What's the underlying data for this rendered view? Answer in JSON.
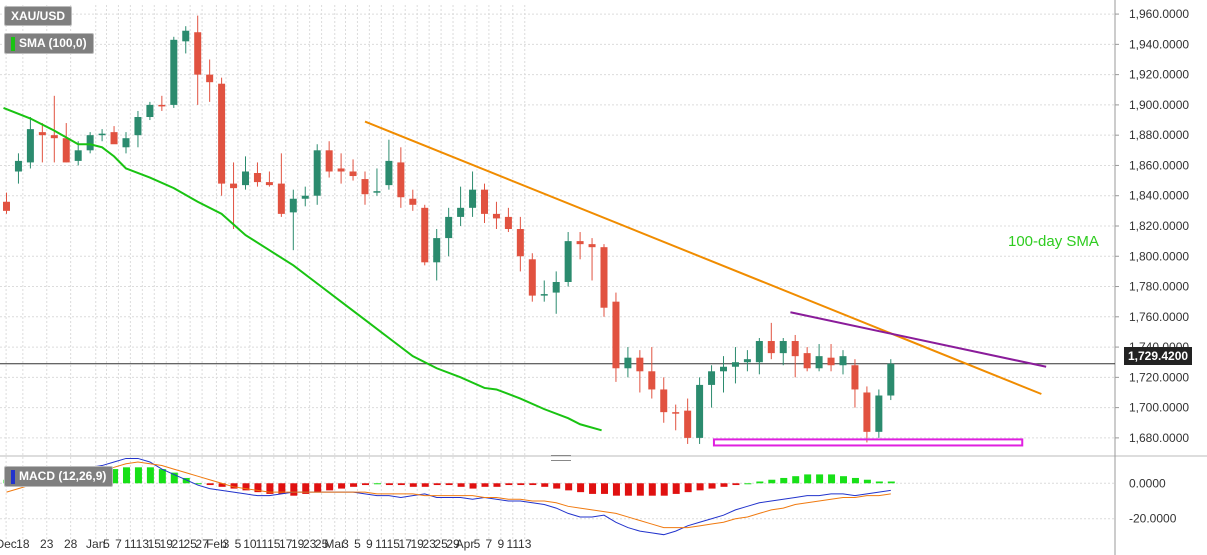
{
  "chart_data": [
    {
      "type": "candlestick",
      "symbol": "XAU/USD",
      "indicator_legend": "SMA (100,0)",
      "annotation": "100-day SMA",
      "last_price_label": "1,729.4200",
      "ylim": [
        1672,
        1966
      ],
      "y_ticks": [
        "1,960.0000",
        "1,940.0000",
        "1,920.0000",
        "1,900.0000",
        "1,880.0000",
        "1,860.0000",
        "1,840.0000",
        "1,820.0000",
        "1,800.0000",
        "1,780.0000",
        "1,760.0000",
        "1,740.0000",
        "1,720.0000",
        "1,700.0000",
        "1,680.0000"
      ],
      "y_tick_values": [
        1960,
        1940,
        1920,
        1900,
        1880,
        1860,
        1840,
        1820,
        1800,
        1780,
        1760,
        1740,
        1720,
        1700,
        1680
      ],
      "x_labels": [
        "Dec",
        "18",
        "23",
        "28",
        "Jan",
        "5",
        "7",
        "11",
        "13",
        "15",
        "19",
        "21",
        "25",
        "27",
        "Feb",
        "3",
        "5",
        "10",
        "11",
        "15",
        "17",
        "19",
        "23",
        "25",
        "Mar",
        "3",
        "5",
        "9",
        "11",
        "15",
        "17",
        "19",
        "23",
        "25",
        "29",
        "Apr",
        "5",
        "7",
        "9",
        "11",
        "13"
      ],
      "x_label_index": [
        -0.2,
        1.2,
        3.2,
        5.2,
        7.3,
        8.2,
        9.2,
        10.2,
        11.2,
        12.2,
        13.2,
        14.2,
        15.2,
        16.2,
        17.4,
        18.2,
        19.2,
        20.2,
        21.2,
        22.2,
        23.2,
        24.2,
        25.2,
        26.2,
        27.3,
        28.2,
        29.2,
        30.2,
        31.2,
        32.2,
        33.2,
        34.2,
        35.2,
        36.2,
        37.2,
        38.2,
        39.2,
        40.2,
        41.2,
        42.2,
        43.2
      ],
      "candles": [
        {
          "o": 1836,
          "h": 1842,
          "l": 1828,
          "c": 1830
        },
        {
          "o": 1856,
          "h": 1868,
          "l": 1848,
          "c": 1863
        },
        {
          "o": 1862,
          "h": 1892,
          "l": 1858,
          "c": 1884
        },
        {
          "o": 1882,
          "h": 1888,
          "l": 1862,
          "c": 1880
        },
        {
          "o": 1880,
          "h": 1906,
          "l": 1862,
          "c": 1878
        },
        {
          "o": 1878,
          "h": 1888,
          "l": 1862,
          "c": 1862
        },
        {
          "o": 1863,
          "h": 1876,
          "l": 1860,
          "c": 1870
        },
        {
          "o": 1870,
          "h": 1882,
          "l": 1868,
          "c": 1880
        },
        {
          "o": 1880,
          "h": 1884,
          "l": 1876,
          "c": 1881
        },
        {
          "o": 1882,
          "h": 1886,
          "l": 1876,
          "c": 1874
        },
        {
          "o": 1872,
          "h": 1882,
          "l": 1868,
          "c": 1878
        },
        {
          "o": 1880,
          "h": 1896,
          "l": 1872,
          "c": 1892
        },
        {
          "o": 1892,
          "h": 1902,
          "l": 1890,
          "c": 1900
        },
        {
          "o": 1900,
          "h": 1906,
          "l": 1896,
          "c": 1899
        },
        {
          "o": 1900,
          "h": 1945,
          "l": 1898,
          "c": 1943
        },
        {
          "o": 1942,
          "h": 1952,
          "l": 1934,
          "c": 1949
        },
        {
          "o": 1948,
          "h": 1959,
          "l": 1900,
          "c": 1920
        },
        {
          "o": 1920,
          "h": 1930,
          "l": 1902,
          "c": 1915
        },
        {
          "o": 1914,
          "h": 1918,
          "l": 1840,
          "c": 1848
        },
        {
          "o": 1848,
          "h": 1862,
          "l": 1818,
          "c": 1845
        },
        {
          "o": 1847,
          "h": 1866,
          "l": 1844,
          "c": 1856
        },
        {
          "o": 1855,
          "h": 1862,
          "l": 1846,
          "c": 1849
        },
        {
          "o": 1849,
          "h": 1856,
          "l": 1846,
          "c": 1847
        },
        {
          "o": 1848,
          "h": 1868,
          "l": 1826,
          "c": 1828
        },
        {
          "o": 1829,
          "h": 1844,
          "l": 1804,
          "c": 1838
        },
        {
          "o": 1838,
          "h": 1846,
          "l": 1833,
          "c": 1840
        },
        {
          "o": 1840,
          "h": 1874,
          "l": 1834,
          "c": 1870
        },
        {
          "o": 1870,
          "h": 1876,
          "l": 1852,
          "c": 1856
        },
        {
          "o": 1858,
          "h": 1868,
          "l": 1848,
          "c": 1856
        },
        {
          "o": 1856,
          "h": 1864,
          "l": 1850,
          "c": 1853
        },
        {
          "o": 1851,
          "h": 1856,
          "l": 1834,
          "c": 1841
        },
        {
          "o": 1842,
          "h": 1858,
          "l": 1840,
          "c": 1843
        },
        {
          "o": 1847,
          "h": 1877,
          "l": 1844,
          "c": 1863
        },
        {
          "o": 1862,
          "h": 1872,
          "l": 1832,
          "c": 1839
        },
        {
          "o": 1838,
          "h": 1844,
          "l": 1830,
          "c": 1834
        },
        {
          "o": 1832,
          "h": 1834,
          "l": 1794,
          "c": 1796
        },
        {
          "o": 1796,
          "h": 1818,
          "l": 1784,
          "c": 1812
        },
        {
          "o": 1812,
          "h": 1832,
          "l": 1800,
          "c": 1826
        },
        {
          "o": 1826,
          "h": 1846,
          "l": 1820,
          "c": 1832
        },
        {
          "o": 1832,
          "h": 1856,
          "l": 1826,
          "c": 1844
        },
        {
          "o": 1844,
          "h": 1848,
          "l": 1822,
          "c": 1828
        },
        {
          "o": 1828,
          "h": 1836,
          "l": 1818,
          "c": 1825
        },
        {
          "o": 1826,
          "h": 1832,
          "l": 1816,
          "c": 1818
        },
        {
          "o": 1818,
          "h": 1826,
          "l": 1790,
          "c": 1800
        },
        {
          "o": 1798,
          "h": 1802,
          "l": 1770,
          "c": 1774
        },
        {
          "o": 1774,
          "h": 1784,
          "l": 1770,
          "c": 1775
        },
        {
          "o": 1776,
          "h": 1790,
          "l": 1762,
          "c": 1783
        },
        {
          "o": 1783,
          "h": 1816,
          "l": 1780,
          "c": 1810
        },
        {
          "o": 1810,
          "h": 1816,
          "l": 1798,
          "c": 1808
        },
        {
          "o": 1808,
          "h": 1812,
          "l": 1784,
          "c": 1806
        },
        {
          "o": 1806,
          "h": 1808,
          "l": 1760,
          "c": 1766
        },
        {
          "o": 1770,
          "h": 1776,
          "l": 1717,
          "c": 1726
        },
        {
          "o": 1726,
          "h": 1740,
          "l": 1720,
          "c": 1733
        },
        {
          "o": 1733,
          "h": 1738,
          "l": 1710,
          "c": 1724
        },
        {
          "o": 1724,
          "h": 1740,
          "l": 1706,
          "c": 1712
        },
        {
          "o": 1712,
          "h": 1720,
          "l": 1690,
          "c": 1697
        },
        {
          "o": 1697,
          "h": 1702,
          "l": 1685,
          "c": 1696
        },
        {
          "o": 1698,
          "h": 1706,
          "l": 1676,
          "c": 1680
        },
        {
          "o": 1680,
          "h": 1720,
          "l": 1676,
          "c": 1715
        },
        {
          "o": 1715,
          "h": 1728,
          "l": 1700,
          "c": 1724
        },
        {
          "o": 1724,
          "h": 1734,
          "l": 1710,
          "c": 1727
        },
        {
          "o": 1727,
          "h": 1740,
          "l": 1716,
          "c": 1730
        },
        {
          "o": 1730,
          "h": 1738,
          "l": 1724,
          "c": 1732
        },
        {
          "o": 1730,
          "h": 1746,
          "l": 1722,
          "c": 1744
        },
        {
          "o": 1744,
          "h": 1756,
          "l": 1732,
          "c": 1736
        },
        {
          "o": 1736,
          "h": 1746,
          "l": 1728,
          "c": 1744
        },
        {
          "o": 1744,
          "h": 1748,
          "l": 1720,
          "c": 1734
        },
        {
          "o": 1736,
          "h": 1740,
          "l": 1724,
          "c": 1726
        },
        {
          "o": 1726,
          "h": 1742,
          "l": 1724,
          "c": 1734
        },
        {
          "o": 1733,
          "h": 1742,
          "l": 1724,
          "c": 1728
        },
        {
          "o": 1728,
          "h": 1738,
          "l": 1722,
          "c": 1734
        },
        {
          "o": 1728,
          "h": 1732,
          "l": 1700,
          "c": 1712
        },
        {
          "o": 1710,
          "h": 1714,
          "l": 1677,
          "c": 1684
        },
        {
          "o": 1684,
          "h": 1712,
          "l": 1680,
          "c": 1708
        },
        {
          "o": 1708,
          "h": 1732,
          "l": 1705,
          "c": 1729
        }
      ],
      "sma_100": [
        [
          -0.5,
          1898
        ],
        [
          4,
          1891
        ],
        [
          8,
          1883
        ],
        [
          12,
          1874
        ],
        [
          14,
          1874
        ],
        [
          16,
          1872
        ],
        [
          18,
          1866
        ],
        [
          20,
          1858
        ],
        [
          24,
          1852
        ],
        [
          28,
          1845
        ],
        [
          32,
          1836
        ],
        [
          36,
          1828
        ],
        [
          40,
          1814
        ],
        [
          44,
          1804
        ],
        [
          48,
          1794
        ],
        [
          52,
          1782
        ],
        [
          56,
          1770
        ],
        [
          60,
          1758
        ],
        [
          64,
          1746
        ],
        [
          68,
          1734
        ],
        [
          72,
          1726
        ],
        [
          76,
          1720
        ],
        [
          80,
          1713
        ],
        [
          82,
          1712
        ],
        [
          86,
          1706
        ],
        [
          90,
          1699
        ],
        [
          94,
          1693
        ],
        [
          96,
          1689
        ],
        [
          99.6,
          1685
        ]
      ],
      "trendlines": [
        {
          "color": "#f08c00",
          "points": [
            [
              15,
              1889
            ],
            [
              43.3,
              1709
            ]
          ]
        },
        {
          "color": "#8a1c9a",
          "points": [
            [
              32.8,
              1763
            ],
            [
              43.5,
              1727
            ]
          ]
        }
      ],
      "support_box": {
        "color": "#e01fe0",
        "x": [
          29.6,
          42.5
        ],
        "y": [
          1675,
          1679
        ]
      }
    },
    {
      "type": "macd",
      "legend": "MACD (12,26,9)",
      "ylim": [
        -32,
        12
      ],
      "y_ticks": [
        "0.0000",
        "-20.0000"
      ],
      "y_tick_values": [
        0,
        -20
      ],
      "histogram": [
        2,
        3,
        4,
        5,
        6,
        6,
        6,
        7,
        7,
        8,
        9,
        9,
        9,
        8,
        6,
        3,
        0,
        -1,
        -2,
        -3,
        -4,
        -5,
        -6,
        -6,
        -7,
        -6,
        -5,
        -4,
        -3,
        -2,
        -1,
        0,
        -1,
        -1,
        -2,
        -2,
        -1,
        -1,
        -2,
        -3,
        -2,
        -2,
        -1,
        -1,
        -1,
        -2,
        -3,
        -4,
        -5,
        -6,
        -6,
        -7,
        -7,
        -7,
        -7,
        -7,
        -6,
        -5,
        -4,
        -3,
        -2,
        -1,
        0,
        1,
        2,
        3,
        4,
        5,
        5,
        5,
        4,
        3,
        2,
        1,
        1
      ],
      "macd_line": [
        -2,
        2,
        4,
        5,
        6,
        6,
        7,
        9,
        10,
        12,
        14,
        14,
        12,
        8,
        5,
        2,
        -1,
        -3,
        -4,
        -5,
        -6,
        -7,
        -7,
        -6,
        -5,
        -5,
        -5,
        -5,
        -5,
        -5,
        -6,
        -7,
        -7,
        -8,
        -7,
        -6,
        -8,
        -8,
        -8,
        -9,
        -8,
        -9,
        -10,
        -10,
        -11,
        -12,
        -14,
        -17,
        -19,
        -19,
        -18,
        -22,
        -25,
        -27,
        -28,
        -29,
        -27,
        -24,
        -22,
        -20,
        -18,
        -15,
        -13,
        -11,
        -10,
        -9,
        -8,
        -7,
        -7,
        -6,
        -6,
        -7,
        -6,
        -5,
        -4
      ],
      "signal_line": [
        -5,
        -3,
        -1,
        1,
        3,
        4,
        5,
        7,
        8,
        9,
        11,
        12,
        11,
        10,
        8,
        6,
        4,
        2,
        0,
        -2,
        -3,
        -4,
        -5,
        -5,
        -5,
        -5,
        -5,
        -5,
        -5,
        -5,
        -5,
        -6,
        -6,
        -6,
        -6,
        -7,
        -7,
        -7,
        -7,
        -7,
        -8,
        -8,
        -9,
        -9,
        -10,
        -10,
        -11,
        -13,
        -14,
        -15,
        -16,
        -17,
        -19,
        -21,
        -23,
        -25,
        -25,
        -25,
        -24,
        -23,
        -22,
        -20,
        -19,
        -17,
        -15,
        -14,
        -12,
        -11,
        -10,
        -9,
        -8,
        -8,
        -7,
        -7,
        -6
      ]
    }
  ],
  "colors": {
    "bull": "#2b8b6e",
    "bear": "#e15240",
    "sma": "#19c312",
    "macd": "#2233cc",
    "signal": "#f07a10",
    "hist_up": "#18e018",
    "hist_down": "#e01010"
  }
}
